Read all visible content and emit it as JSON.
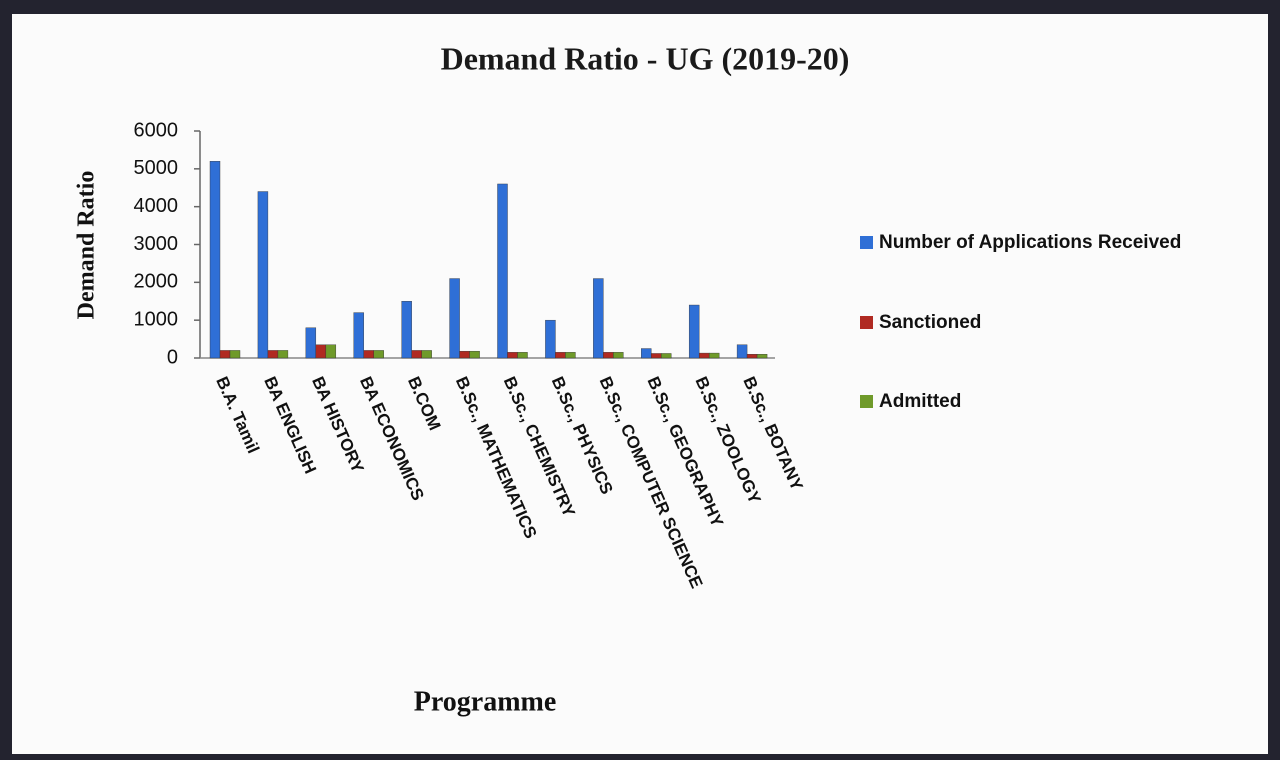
{
  "chart_data": {
    "type": "bar",
    "title": "Demand Ratio - UG (2019-20)",
    "x_label": "Programme",
    "y_label": "Demand Ratio",
    "categories": [
      "B.A. Tamil",
      "BA ENGLISH",
      "BA HISTORY",
      "BA ECONOMICS",
      "B.COM",
      "B.Sc., MATHEMATICS",
      "B.Sc., CHEMISTRY",
      "B.Sc., PHYSICS",
      "B.Sc., COMPUTER SCIENCE",
      "B.Sc., GEOGRAPHY",
      "B.Sc., ZOOLOGY",
      "B.Sc., BOTANY"
    ],
    "series": [
      {
        "name": "Number of Applications Received",
        "color": "#2f6fd6",
        "values": [
          5200,
          4400,
          800,
          1200,
          1500,
          2100,
          4600,
          1000,
          2100,
          250,
          1400,
          350
        ]
      },
      {
        "name": "Sanctioned",
        "color": "#b02a22",
        "values": [
          200,
          200,
          350,
          200,
          200,
          180,
          150,
          150,
          150,
          120,
          130,
          100
        ]
      },
      {
        "name": "Admitted",
        "color": "#6f9a2a",
        "values": [
          200,
          200,
          350,
          200,
          200,
          180,
          150,
          150,
          150,
          120,
          130,
          100
        ]
      }
    ],
    "ylim": [
      0,
      6000
    ],
    "yticks": [
      0,
      1000,
      2000,
      3000,
      4000,
      5000,
      6000
    ],
    "legend": "right"
  }
}
